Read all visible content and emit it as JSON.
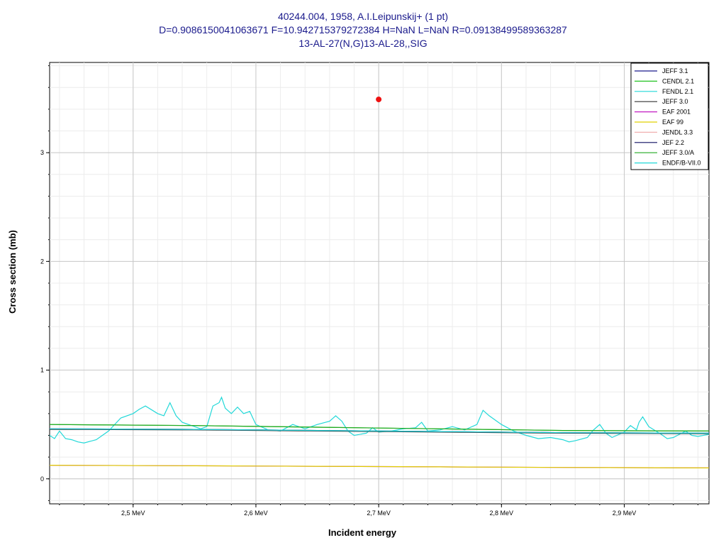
{
  "chart_data": {
    "type": "line",
    "title_lines": [
      "40244.004, 1958, A.I.Leipunskij+ (1 pt)",
      "D=0.9086150041063671 F=10.942715379272384 H=NaN L=NaN R=0.09138499589363287",
      "13-AL-27(N,G)13-AL-28,,SIG"
    ],
    "xlabel": "Incident energy",
    "ylabel": "Cross section (mb)",
    "xlim": [
      2.432,
      2.969
    ],
    "ylim": [
      -0.23,
      3.83
    ],
    "x_ticks": [
      {
        "value": 2.5,
        "label": "2,5 MeV"
      },
      {
        "value": 2.6,
        "label": "2,6 MeV"
      },
      {
        "value": 2.7,
        "label": "2,7 MeV"
      },
      {
        "value": 2.8,
        "label": "2,8 MeV"
      },
      {
        "value": 2.9,
        "label": "2,9 MeV"
      }
    ],
    "y_ticks": [
      {
        "value": 0,
        "label": "0"
      },
      {
        "value": 1,
        "label": "1"
      },
      {
        "value": 2,
        "label": "2"
      },
      {
        "value": 3,
        "label": "3"
      }
    ],
    "grid": true,
    "legend_position": "top-right",
    "series": [
      {
        "name": "JEFF 3.1",
        "color": "#1a1a8c",
        "x": [
          2.432,
          2.55,
          2.65,
          2.75,
          2.85,
          2.969
        ],
        "y": [
          0.46,
          0.455,
          0.445,
          0.435,
          0.425,
          0.42
        ]
      },
      {
        "name": "CENDL 2.1",
        "color": "#22c222",
        "x": [
          2.432,
          2.55,
          2.65,
          2.75,
          2.85,
          2.969
        ],
        "y": [
          0.5,
          0.49,
          0.475,
          0.46,
          0.445,
          0.44
        ]
      },
      {
        "name": "FENDL 2.1",
        "color": "#22d8d8",
        "x": [
          2.432,
          2.436,
          2.44,
          2.445,
          2.45,
          2.455,
          2.46,
          2.47,
          2.48,
          2.49,
          2.5,
          2.505,
          2.51,
          2.52,
          2.525,
          2.53,
          2.535,
          2.54,
          2.55,
          2.555,
          2.56,
          2.565,
          2.57,
          2.572,
          2.575,
          2.58,
          2.585,
          2.59,
          2.595,
          2.6,
          2.61,
          2.62,
          2.63,
          2.64,
          2.65,
          2.66,
          2.665,
          2.67,
          2.675,
          2.68,
          2.69,
          2.695,
          2.7,
          2.71,
          2.72,
          2.73,
          2.735,
          2.74,
          2.75,
          2.76,
          2.77,
          2.78,
          2.785,
          2.79,
          2.8,
          2.81,
          2.82,
          2.83,
          2.84,
          2.85,
          2.855,
          2.86,
          2.87,
          2.875,
          2.88,
          2.885,
          2.89,
          2.9,
          2.905,
          2.91,
          2.912,
          2.915,
          2.92,
          2.93,
          2.935,
          2.94,
          2.95,
          2.955,
          2.96,
          2.969
        ],
        "y": [
          0.4,
          0.37,
          0.44,
          0.37,
          0.36,
          0.34,
          0.33,
          0.36,
          0.44,
          0.56,
          0.6,
          0.64,
          0.67,
          0.6,
          0.58,
          0.7,
          0.58,
          0.52,
          0.48,
          0.46,
          0.48,
          0.67,
          0.7,
          0.75,
          0.65,
          0.6,
          0.66,
          0.6,
          0.62,
          0.5,
          0.45,
          0.44,
          0.5,
          0.46,
          0.5,
          0.53,
          0.58,
          0.53,
          0.44,
          0.4,
          0.42,
          0.47,
          0.43,
          0.44,
          0.46,
          0.47,
          0.52,
          0.44,
          0.45,
          0.48,
          0.45,
          0.5,
          0.63,
          0.58,
          0.5,
          0.44,
          0.4,
          0.37,
          0.38,
          0.36,
          0.34,
          0.35,
          0.38,
          0.45,
          0.5,
          0.42,
          0.38,
          0.43,
          0.49,
          0.45,
          0.52,
          0.57,
          0.48,
          0.41,
          0.37,
          0.38,
          0.44,
          0.4,
          0.39,
          0.41
        ]
      },
      {
        "name": "JEFF 3.0",
        "color": "#333333",
        "x": [
          2.432,
          2.55,
          2.65,
          2.75,
          2.85,
          2.969
        ],
        "y": [
          0.455,
          0.45,
          0.44,
          0.43,
          0.42,
          0.415
        ]
      },
      {
        "name": "EAF 2001",
        "color": "#c21bc2",
        "x": [
          2.432,
          2.55,
          2.65,
          2.75,
          2.85,
          2.969
        ],
        "y": [
          0.125,
          0.12,
          0.115,
          0.11,
          0.105,
          0.1
        ]
      },
      {
        "name": "EAF 99",
        "color": "#e0d000",
        "x": [
          2.432,
          2.55,
          2.65,
          2.75,
          2.85,
          2.969
        ],
        "y": [
          0.125,
          0.12,
          0.115,
          0.11,
          0.105,
          0.1
        ]
      },
      {
        "name": "JENDL 3.3",
        "color": "#f0b0b0",
        "x": [
          2.432,
          2.55,
          2.65,
          2.75,
          2.85,
          2.969
        ],
        "y": [
          0.46,
          0.455,
          0.445,
          0.435,
          0.425,
          0.42
        ]
      },
      {
        "name": "JEF 2.2",
        "color": "#0f0f60",
        "x": [
          2.432,
          2.55,
          2.65,
          2.75,
          2.85,
          2.969
        ],
        "y": [
          0.46,
          0.455,
          0.445,
          0.435,
          0.425,
          0.42
        ]
      },
      {
        "name": "JEFF 3.0/A",
        "color": "#22aa22",
        "x": [
          2.432,
          2.55,
          2.65,
          2.75,
          2.85,
          2.969
        ],
        "y": [
          0.5,
          0.49,
          0.475,
          0.46,
          0.445,
          0.44
        ]
      },
      {
        "name": "ENDF/B-VII.0",
        "color": "#22d8d8",
        "x": [
          2.432,
          2.55,
          2.65,
          2.75,
          2.85,
          2.969
        ],
        "y": [
          0.46,
          0.455,
          0.445,
          0.435,
          0.425,
          0.42
        ]
      }
    ],
    "points": [
      {
        "x": 2.7,
        "y": 3.49,
        "color": "#ee1111"
      }
    ]
  }
}
